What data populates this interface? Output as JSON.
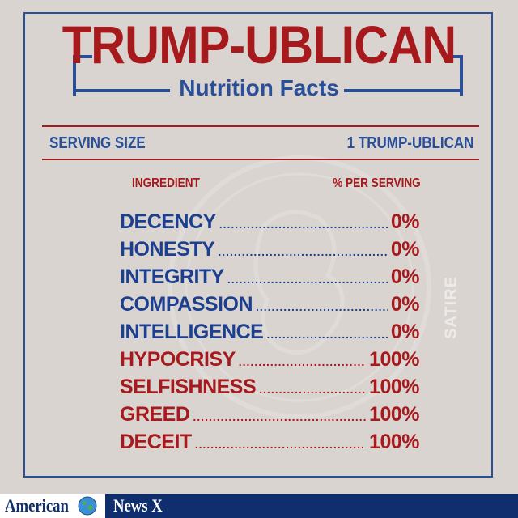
{
  "title": "TRUMP-UBLICAN",
  "subtitle": "Nutrition Facts",
  "serving": {
    "label": "SERVING SIZE",
    "value": "1 TRUMP-UBLICAN"
  },
  "columns": {
    "ingredient": "INGREDIENT",
    "percent": "% PER SERVING"
  },
  "watermark_text": "SATIRE",
  "ingredients": [
    {
      "name": "DECENCY",
      "percent": "0%"
    },
    {
      "name": "HONESTY",
      "percent": "0%"
    },
    {
      "name": "INTEGRITY",
      "percent": "0%"
    },
    {
      "name": "COMPASSION",
      "percent": "0%"
    },
    {
      "name": "INTELLIGENCE",
      "percent": "0%"
    },
    {
      "name": "HYPOCRISY",
      "percent": "100%"
    },
    {
      "name": "SELFISHNESS",
      "percent": "100%"
    },
    {
      "name": "GREED",
      "percent": "100%"
    },
    {
      "name": "DECEIT",
      "percent": "100%"
    }
  ],
  "footer": {
    "brand_left": "American",
    "brand_right": "News X"
  },
  "colors": {
    "red": "#a6191d",
    "blue": "#2a4f99",
    "background": "#d9d4d0",
    "footer": "#102e6e"
  }
}
